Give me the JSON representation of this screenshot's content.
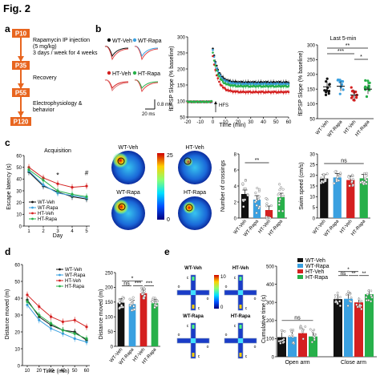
{
  "figure": {
    "title": "Fig. 2",
    "panels": [
      "a",
      "b",
      "c",
      "d",
      "e"
    ]
  },
  "colors": {
    "wt_veh": "#111111",
    "wt_rapa": "#3aa0e0",
    "ht_veh": "#d42020",
    "ht_rapa": "#27b04a",
    "timeline": "#e8651f"
  },
  "timeline": {
    "steps": [
      {
        "label": "P10",
        "text": [
          "Rapamycin IP injection",
          "(5 mg/kg)",
          "3 days / week for 4 weeks"
        ]
      },
      {
        "label": "P35",
        "text": [
          "Recovery"
        ]
      },
      {
        "label": "P55",
        "text": [
          "Electrophysiology &",
          "behavior"
        ]
      },
      {
        "label": "P120",
        "text": []
      }
    ]
  },
  "legend": {
    "groups": [
      "WT-Veh",
      "WT-Rapa",
      "HT-Veh",
      "HT-Rapa"
    ]
  },
  "scale_bar": {
    "voltage": "0.8 mV",
    "time": "20 ms"
  },
  "labels": {
    "hfs": "HFS",
    "acquisition": "Acquisition",
    "last5": "Last 5-min",
    "open_arm": "Open arm",
    "close_arm": "Close arm",
    "heat_max": "25",
    "heat_min": "0",
    "epm_max": "10",
    "epm_min": "0",
    "epm_letters": [
      "c",
      "o"
    ]
  },
  "significance": {
    "b": [
      "**",
      "***",
      "*"
    ],
    "c_crossings": "**",
    "c_swim": "ns",
    "d": [
      "*",
      "ns",
      "***",
      "***"
    ],
    "e_open": "ns",
    "e_close": [
      "*",
      "ns",
      "**",
      "**"
    ]
  },
  "chart_data": [
    {
      "id": "b-ltp-timecourse",
      "type": "scatter",
      "xlabel": "Time (min)",
      "ylabel": "fEPSP Slope (% baseline)",
      "x_ticks": [
        -20,
        -10,
        0,
        10,
        20,
        30,
        40,
        50,
        60
      ],
      "y_ticks": [
        50,
        100,
        150,
        200,
        250,
        300
      ],
      "xlim": [
        -20,
        60
      ],
      "ylim": [
        50,
        300
      ],
      "series": [
        {
          "name": "WT-Veh",
          "baseline": 100,
          "peak": 265,
          "plateau": 158
        },
        {
          "name": "WT-Rapa",
          "baseline": 100,
          "peak": 260,
          "plateau": 153
        },
        {
          "name": "HT-Veh",
          "baseline": 100,
          "peak": 240,
          "plateau": 128
        },
        {
          "name": "HT-Rapa",
          "baseline": 100,
          "peak": 250,
          "plateau": 146
        }
      ]
    },
    {
      "id": "b-last5",
      "type": "scatter",
      "ylabel": "fEPSP Slope (% baseline)",
      "y_ticks": [
        50,
        100,
        150,
        200,
        250,
        300
      ],
      "ylim": [
        50,
        300
      ],
      "categories": [
        "WT-Veh",
        "WT-Rapa",
        "HT-Veh",
        "HT-Rapa"
      ],
      "values": [
        158,
        160,
        130,
        150
      ]
    },
    {
      "id": "c-acquisition",
      "type": "line",
      "title": "Acquisition",
      "xlabel": "Day",
      "ylabel": "Escape latency (s)",
      "x": [
        1,
        2,
        3,
        4,
        5
      ],
      "x_ticks": [
        1,
        2,
        3,
        4,
        5
      ],
      "y_ticks": [
        0,
        10,
        20,
        30,
        40,
        50,
        60
      ],
      "ylim": [
        0,
        60
      ],
      "series": [
        {
          "name": "WT-Veh",
          "values": [
            46,
            34,
            29,
            25,
            23
          ]
        },
        {
          "name": "WT-Rapa",
          "values": [
            47,
            35,
            28,
            26,
            24
          ]
        },
        {
          "name": "HT-Veh",
          "values": [
            50,
            41,
            36,
            33,
            34
          ]
        },
        {
          "name": "HT-Rapa",
          "values": [
            48,
            39,
            30,
            27,
            25
          ]
        }
      ]
    },
    {
      "id": "c-crossings",
      "type": "bar",
      "ylabel": "Number of crossings",
      "categories": [
        "WT-Veh",
        "WT-Rapa",
        "HT-Veh",
        "HT-Rapa"
      ],
      "values": [
        3.0,
        2.3,
        1.0,
        2.6
      ],
      "y_ticks": [
        0,
        2,
        4,
        6,
        8
      ],
      "ylim": [
        0,
        8
      ]
    },
    {
      "id": "c-swim-speed",
      "type": "bar",
      "ylabel": "Swim speed (cm/s)",
      "categories": [
        "WT-Veh",
        "WT-Rapa",
        "HT-Veh",
        "HT-Rapa"
      ],
      "values": [
        18.5,
        19.0,
        17.8,
        18.6
      ],
      "y_ticks": [
        0,
        5,
        10,
        15,
        20,
        25,
        30
      ],
      "ylim": [
        0,
        30
      ]
    },
    {
      "id": "d-timecourse",
      "type": "line",
      "xlabel": "Time (min)",
      "ylabel": "Distance moved (m)",
      "x": [
        10,
        20,
        30,
        40,
        50,
        60
      ],
      "x_ticks": [
        10,
        20,
        30,
        40,
        50,
        60
      ],
      "y_ticks": [
        0,
        10,
        20,
        30,
        40,
        50,
        60
      ],
      "ylim": [
        0,
        60
      ],
      "series": [
        {
          "name": "WT-Veh",
          "values": [
            39,
            29,
            24,
            21,
            20,
            15
          ]
        },
        {
          "name": "WT-Rapa",
          "values": [
            36,
            27,
            22,
            19,
            16,
            14
          ]
        },
        {
          "name": "HT-Veh",
          "values": [
            42,
            35,
            29,
            26,
            27,
            23
          ]
        },
        {
          "name": "HT-Rapa",
          "values": [
            38,
            30,
            25,
            21,
            19,
            16
          ]
        }
      ]
    },
    {
      "id": "d-total",
      "type": "bar",
      "ylabel": "Distance moved (m)",
      "categories": [
        "WT-Veh",
        "WT-Rapa",
        "HT-Veh",
        "HT-Rapa"
      ],
      "values": [
        148,
        143,
        180,
        146
      ],
      "y_ticks": [
        0,
        50,
        100,
        150,
        200,
        250
      ],
      "ylim": [
        0,
        250
      ]
    },
    {
      "id": "e-cumulative",
      "type": "bar",
      "ylabel": "Cumulative time (s)",
      "categories": [
        "Open arm",
        "Close arm"
      ],
      "series": [
        {
          "name": "WT-Veh",
          "values": [
            108,
            318
          ]
        },
        {
          "name": "WT-Rapa",
          "values": [
            110,
            320
          ]
        },
        {
          "name": "HT-Veh",
          "values": [
            130,
            300
          ]
        },
        {
          "name": "HT-Rapa",
          "values": [
            112,
            345
          ]
        }
      ],
      "y_ticks": [
        0,
        100,
        200,
        300,
        400,
        500
      ],
      "ylim": [
        0,
        500
      ]
    }
  ]
}
